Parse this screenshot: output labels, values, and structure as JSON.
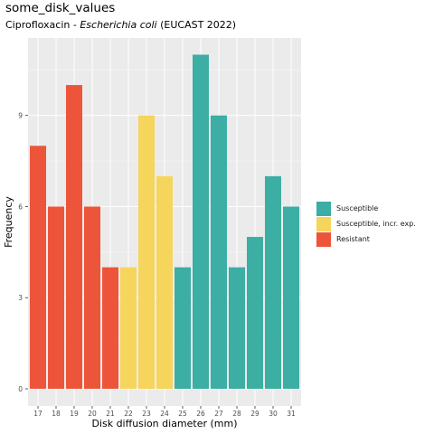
{
  "title": "some_disk_values",
  "subtitle": {
    "prefix": "Ciprofloxacin - ",
    "organism": "Escherichia coli",
    "suffix": " (EUCAST 2022)"
  },
  "colors": {
    "susceptible": "#3CAEA3",
    "intermediate": "#F6D55C",
    "resistant": "#ED553B",
    "panel": "#EBEBEB",
    "grid_major": "#FFFFFF"
  },
  "legend": [
    {
      "label": "Susceptible",
      "color": "#3CAEA3"
    },
    {
      "label": "Susceptible, incr. exp.",
      "color": "#F6D55C"
    },
    {
      "label": "Resistant",
      "color": "#ED553B"
    }
  ],
  "chart_data": {
    "type": "bar",
    "title": "some_disk_values",
    "xlabel": "Disk diffusion diameter (mm)",
    "ylabel": "Frequency",
    "categories": [
      "17",
      "18",
      "19",
      "20",
      "21",
      "22",
      "23",
      "24",
      "25",
      "26",
      "27",
      "28",
      "29",
      "30",
      "31"
    ],
    "values": [
      8,
      6,
      10,
      6,
      4,
      4,
      9,
      7,
      4,
      11,
      9,
      4,
      5,
      7,
      6
    ],
    "interpretation": [
      "Resistant",
      "Resistant",
      "Resistant",
      "Resistant",
      "Resistant",
      "Susceptible, incr. exp.",
      "Susceptible, incr. exp.",
      "Susceptible, incr. exp.",
      "Susceptible",
      "Susceptible",
      "Susceptible",
      "Susceptible",
      "Susceptible",
      "Susceptible",
      "Susceptible"
    ],
    "yticks": [
      0,
      3,
      6,
      9
    ],
    "ylim": [
      0,
      11.55
    ],
    "grid": true,
    "legend_position": "right"
  }
}
